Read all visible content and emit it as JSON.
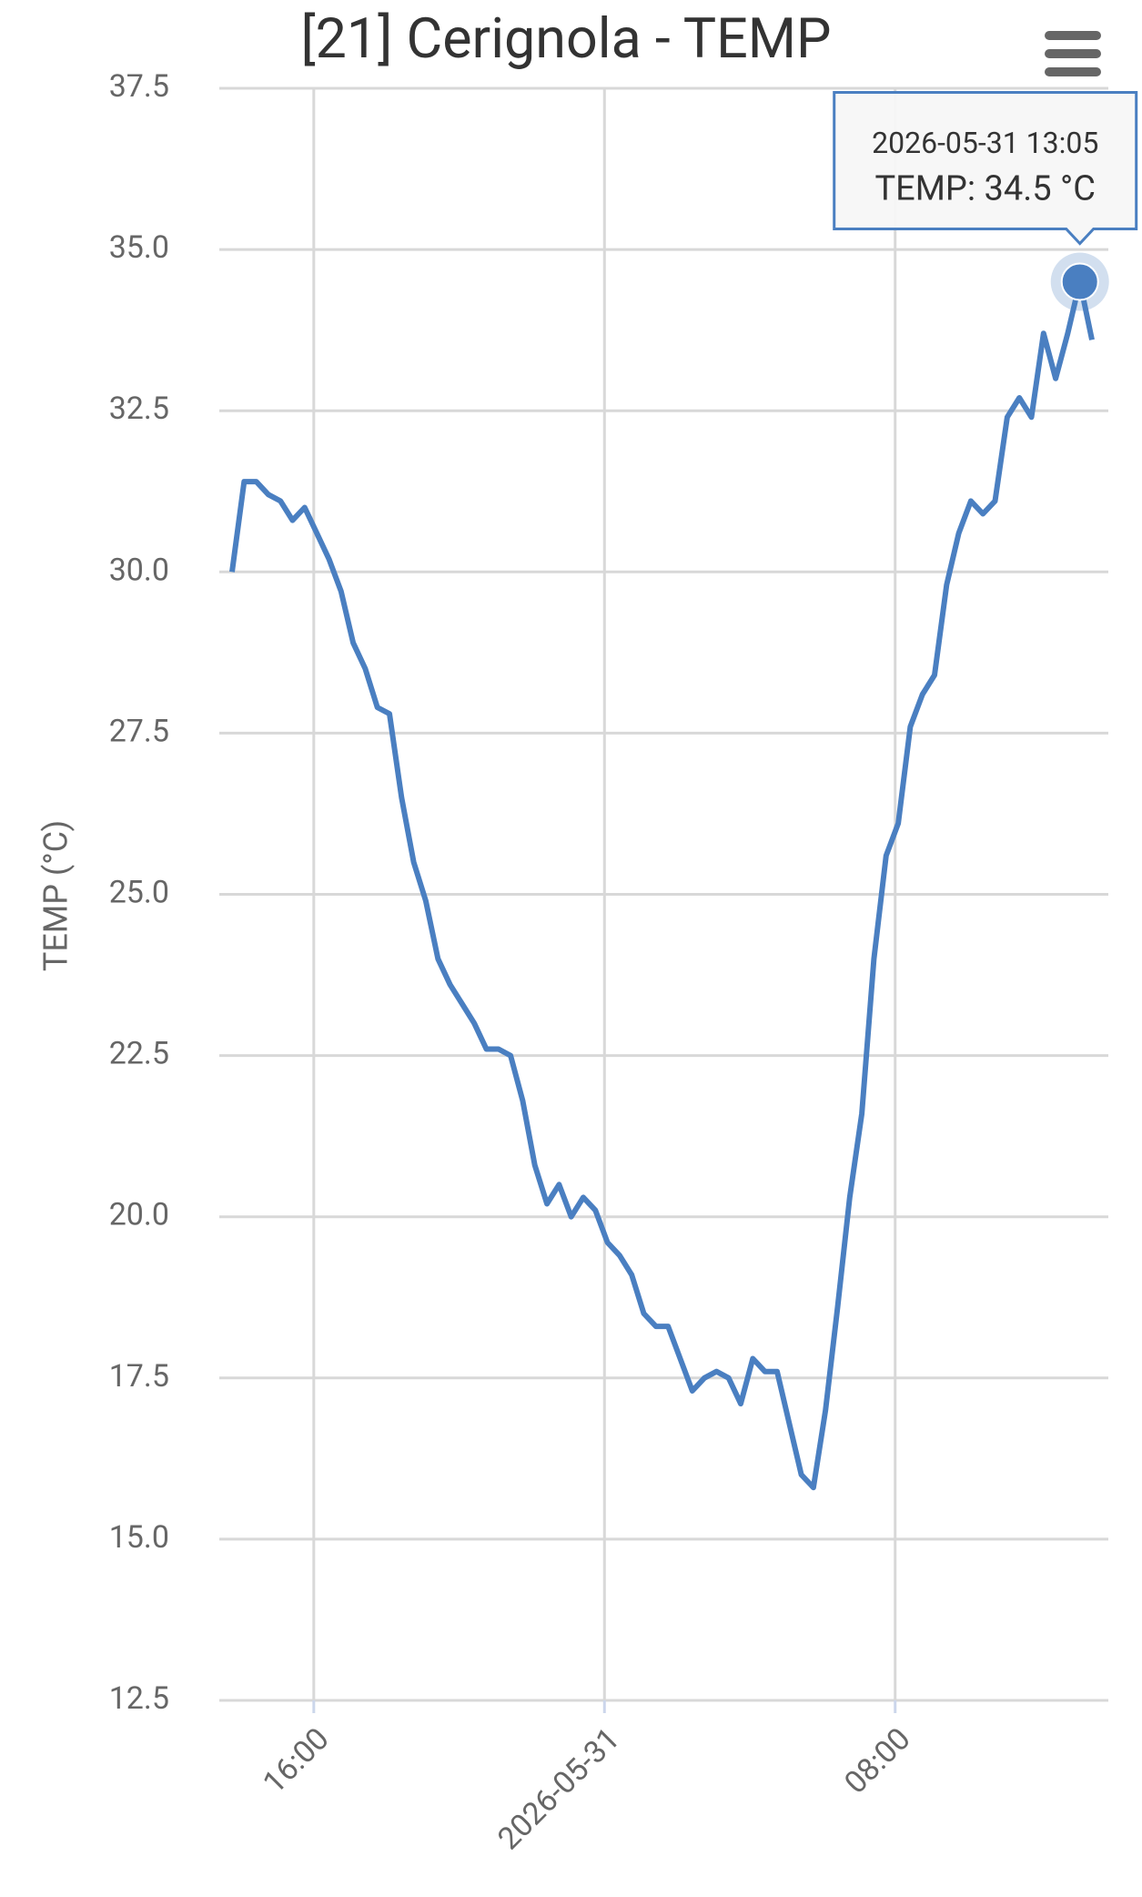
{
  "chart_data": {
    "type": "line",
    "title": "[21] Cerignola - TEMP",
    "y_label": "TEMP (°C)",
    "grid": true,
    "x": [
      "2026-05-30 13:45",
      "2026-05-30 14:05",
      "2026-05-30 14:25",
      "2026-05-30 14:45",
      "2026-05-30 15:05",
      "2026-05-30 15:25",
      "2026-05-30 15:45",
      "2026-05-30 16:05",
      "2026-05-30 16:25",
      "2026-05-30 16:45",
      "2026-05-30 17:05",
      "2026-05-30 17:25",
      "2026-05-30 17:45",
      "2026-05-30 18:05",
      "2026-05-30 18:25",
      "2026-05-30 18:45",
      "2026-05-30 19:05",
      "2026-05-30 19:25",
      "2026-05-30 19:45",
      "2026-05-30 20:05",
      "2026-05-30 20:25",
      "2026-05-30 20:45",
      "2026-05-30 21:05",
      "2026-05-30 21:25",
      "2026-05-30 21:45",
      "2026-05-30 22:05",
      "2026-05-30 22:25",
      "2026-05-30 22:45",
      "2026-05-30 23:05",
      "2026-05-30 23:25",
      "2026-05-30 23:45",
      "2026-05-31 00:05",
      "2026-05-31 00:25",
      "2026-05-31 00:45",
      "2026-05-31 01:05",
      "2026-05-31 01:25",
      "2026-05-31 01:45",
      "2026-05-31 02:05",
      "2026-05-31 02:25",
      "2026-05-31 02:45",
      "2026-05-31 03:05",
      "2026-05-31 03:25",
      "2026-05-31 03:45",
      "2026-05-31 04:05",
      "2026-05-31 04:25",
      "2026-05-31 04:45",
      "2026-05-31 05:05",
      "2026-05-31 05:25",
      "2026-05-31 05:45",
      "2026-05-31 06:05",
      "2026-05-31 06:25",
      "2026-05-31 06:45",
      "2026-05-31 07:05",
      "2026-05-31 07:25",
      "2026-05-31 07:45",
      "2026-05-31 08:05",
      "2026-05-31 08:25",
      "2026-05-31 08:45",
      "2026-05-31 09:05",
      "2026-05-31 09:25",
      "2026-05-31 09:45",
      "2026-05-31 10:05",
      "2026-05-31 10:25",
      "2026-05-31 10:45",
      "2026-05-31 11:05",
      "2026-05-31 11:25",
      "2026-05-31 11:45",
      "2026-05-31 12:05",
      "2026-05-31 12:25",
      "2026-05-31 12:45",
      "2026-05-31 13:05",
      "2026-05-31 13:25"
    ],
    "series": [
      {
        "name": "TEMP",
        "color": "#4a7fc1",
        "values": [
          30.0,
          31.4,
          31.4,
          31.2,
          31.1,
          30.8,
          31.0,
          30.6,
          30.2,
          29.7,
          28.9,
          28.5,
          27.9,
          27.8,
          26.5,
          25.5,
          24.9,
          24.0,
          23.6,
          23.3,
          23.0,
          22.6,
          22.6,
          22.5,
          21.8,
          20.8,
          20.2,
          20.5,
          20.0,
          20.3,
          20.1,
          19.6,
          19.4,
          19.1,
          18.5,
          18.3,
          18.3,
          17.8,
          17.3,
          17.5,
          17.6,
          17.5,
          17.1,
          17.8,
          17.6,
          17.6,
          16.8,
          16.0,
          15.8,
          17.0,
          18.6,
          20.3,
          21.6,
          24.0,
          25.6,
          26.1,
          27.6,
          28.1,
          28.4,
          29.8,
          30.6,
          31.1,
          30.9,
          31.1,
          32.4,
          32.7,
          32.4,
          33.7,
          33.0,
          33.7,
          34.5,
          33.6
        ]
      }
    ],
    "xlim": [
      "2026-05-30 13:24",
      "2026-05-31 13:52"
    ],
    "xticks": [
      {
        "value": "2026-05-30 16:00",
        "label": "16:00"
      },
      {
        "value": "2026-05-31 00:00",
        "label": "2026-05-31"
      },
      {
        "value": "2026-05-31 08:00",
        "label": "08:00"
      }
    ],
    "ylim": [
      12.5,
      37.5
    ],
    "yticks": [
      12.5,
      {
        "value": 15,
        "label": "15.0"
      },
      17.5,
      {
        "value": 20,
        "label": "20.0"
      },
      22.5,
      {
        "value": 25,
        "label": "25.0"
      },
      27.5,
      {
        "value": 30,
        "label": "30.0"
      },
      32.5,
      {
        "value": 35,
        "label": "35.0"
      },
      37.5
    ],
    "tooltip": {
      "title": "2026-05-31 13:05",
      "text": "TEMP: 34.5 °C"
    }
  }
}
